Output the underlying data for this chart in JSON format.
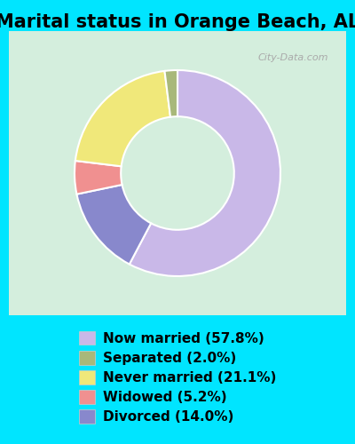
{
  "title": "Marital status in Orange Beach, AL",
  "slices": [
    {
      "label": "Now married (57.8%)",
      "value": 57.8,
      "color": "#c9b8e8"
    },
    {
      "label": "Separated (2.0%)",
      "value": 2.0,
      "color": "#a8b87a"
    },
    {
      "label": "Never married (21.1%)",
      "value": 21.1,
      "color": "#f0e87a"
    },
    {
      "label": "Widowed (5.2%)",
      "value": 5.2,
      "color": "#f09090"
    },
    {
      "label": "Divorced (14.0%)",
      "value": 14.0,
      "color": "#8888cc"
    }
  ],
  "background_color_top": "#c8f0e0",
  "background_color_bottom": "#e8f8d8",
  "outer_bg_color": "#00e5ff",
  "title_fontsize": 15,
  "legend_fontsize": 11,
  "watermark": "City-Data.com"
}
